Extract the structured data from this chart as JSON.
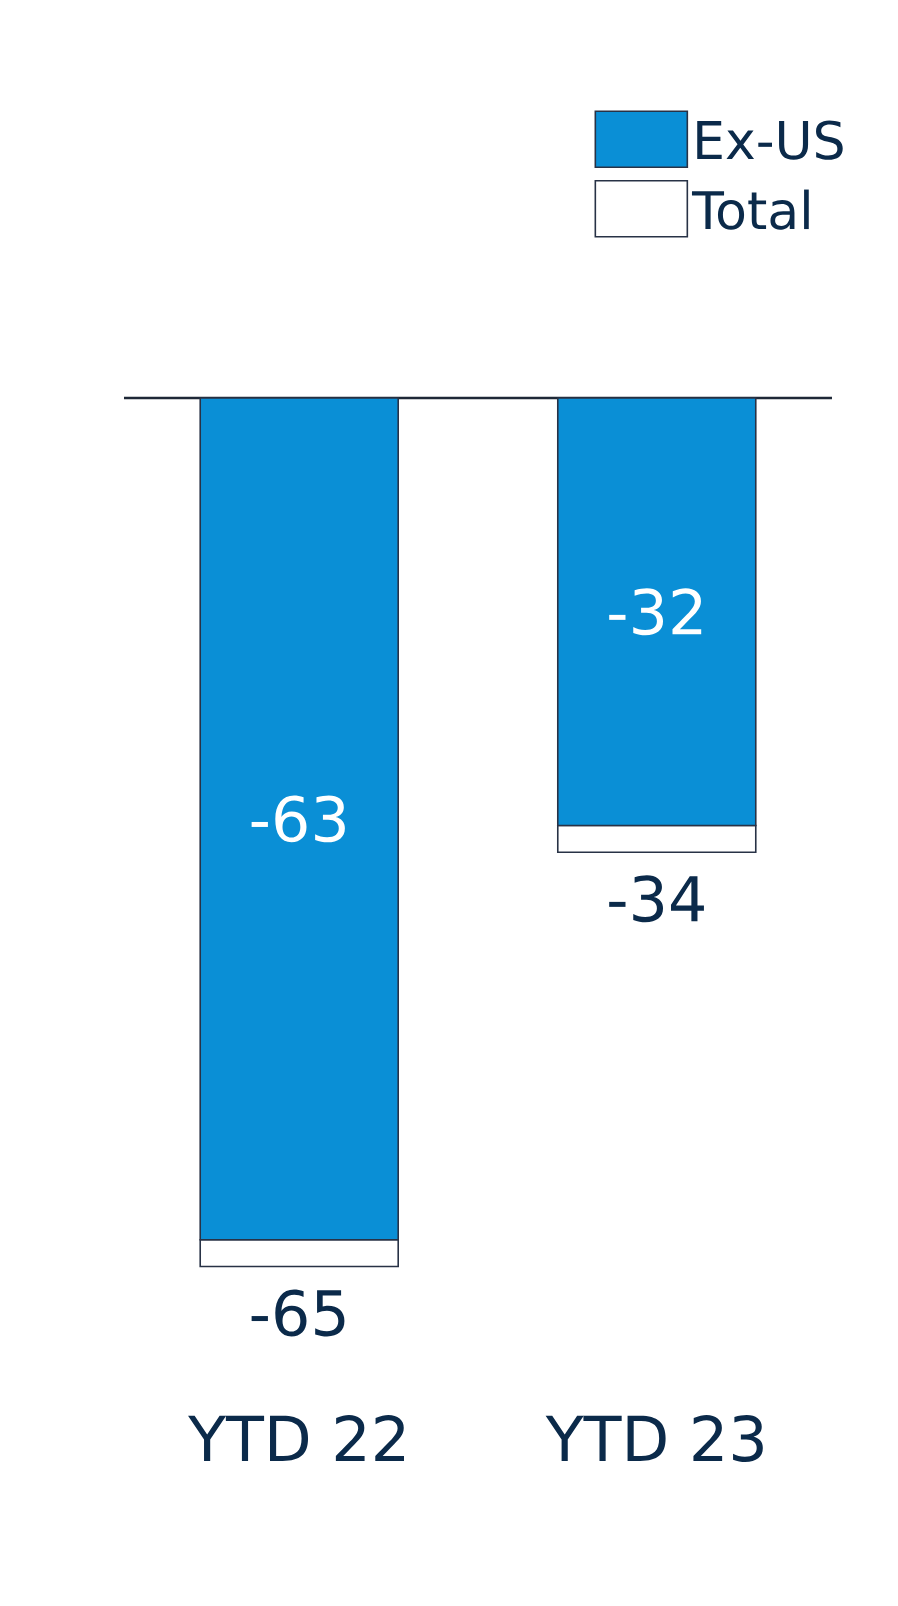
{
  "chart_data": {
    "type": "bar",
    "stacked": true,
    "categories": [
      "YTD 22",
      "YTD 23"
    ],
    "series": [
      {
        "name": "Ex-US",
        "color": "#0a8fd6",
        "values": [
          -63,
          -32
        ],
        "value_labels": [
          "-63",
          "-32"
        ]
      },
      {
        "name": "Total",
        "color": "#ffffff",
        "values": [
          -2,
          -2
        ]
      }
    ],
    "totals": [
      "-65",
      "-34"
    ],
    "legend": "top right"
  }
}
